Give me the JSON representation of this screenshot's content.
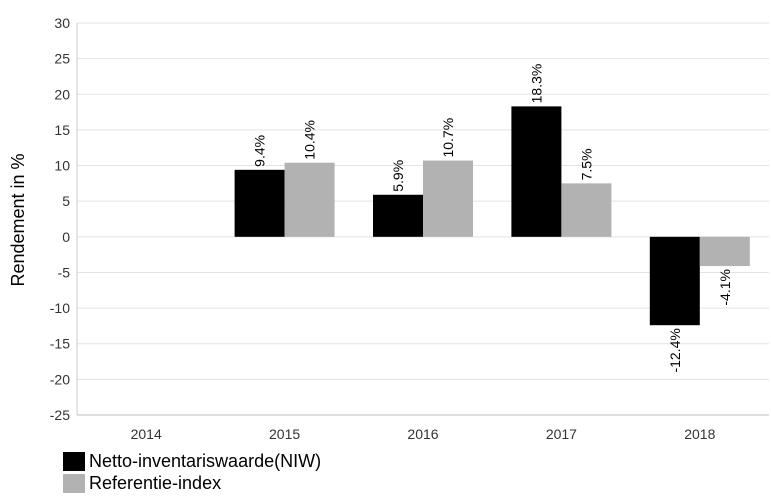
{
  "chart_data": {
    "type": "bar",
    "categories": [
      "2014",
      "2015",
      "2016",
      "2017",
      "2018"
    ],
    "series": [
      {
        "name": "Netto-inventariswaarde(NIW)",
        "color": "#000000",
        "values": [
          null,
          9.4,
          5.9,
          18.3,
          -12.4
        ],
        "labels": [
          "",
          "9.4%",
          "5.9%",
          "18.3%",
          "-12.4%"
        ]
      },
      {
        "name": "Referentie-index",
        "color": "#b2b2b2",
        "values": [
          null,
          10.4,
          10.7,
          7.5,
          -4.1
        ],
        "labels": [
          "",
          "10.4%",
          "10.7%",
          "7.5%",
          "-4.1%"
        ]
      }
    ],
    "ylabel": "Rendement in %",
    "ylim": [
      -25,
      30
    ],
    "yticks": [
      "30",
      "25",
      "20",
      "15",
      "10",
      "5",
      "0",
      "-5",
      "-10",
      "-15",
      "-20",
      "-25"
    ],
    "grid": true,
    "legend_position": "bottom-left"
  }
}
